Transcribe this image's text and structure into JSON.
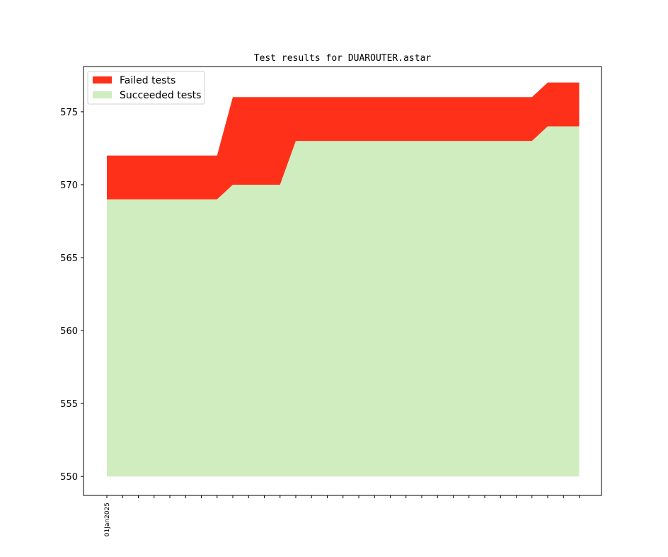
{
  "chart_data": {
    "type": "area",
    "title": "Test results for DUAROUTER.astar",
    "xlabel": "",
    "ylabel": "",
    "ylim": [
      548.7,
      578.1
    ],
    "yticks": [
      550,
      555,
      560,
      565,
      570,
      575
    ],
    "x": [
      0,
      1,
      2,
      3,
      4,
      5,
      6,
      7,
      8,
      9,
      10,
      11,
      12,
      13,
      14,
      15,
      16,
      17,
      18,
      19,
      20,
      21,
      22,
      23,
      24,
      25,
      26,
      27,
      28,
      29,
      30
    ],
    "x_tick_labels": [
      "01Jan2025",
      "",
      "",
      "",
      "",
      "",
      "",
      "",
      "",
      "",
      "",
      "",
      "",
      "",
      "",
      "",
      "",
      "",
      "",
      "",
      "",
      "",
      "",
      "",
      "",
      "",
      "",
      "",
      "",
      "",
      ""
    ],
    "baseline": 550,
    "series": [
      {
        "name": "Succeeded tests",
        "color": "#cfedbf",
        "values": [
          569,
          569,
          569,
          569,
          569,
          569,
          569,
          569,
          570,
          570,
          570,
          570,
          573,
          573,
          573,
          573,
          573,
          573,
          573,
          573,
          573,
          573,
          573,
          573,
          573,
          573,
          573,
          573,
          574,
          574,
          574
        ]
      },
      {
        "name": "Failed tests",
        "color": "#ff3019",
        "values": [
          572,
          572,
          572,
          572,
          572,
          572,
          572,
          572,
          576,
          576,
          576,
          576,
          576,
          576,
          576,
          576,
          576,
          576,
          576,
          576,
          576,
          576,
          576,
          576,
          576,
          576,
          576,
          576,
          577,
          577,
          577
        ]
      }
    ],
    "legend": [
      "Failed tests",
      "Succeeded tests"
    ],
    "legend_position": "top-left",
    "grid": false
  }
}
